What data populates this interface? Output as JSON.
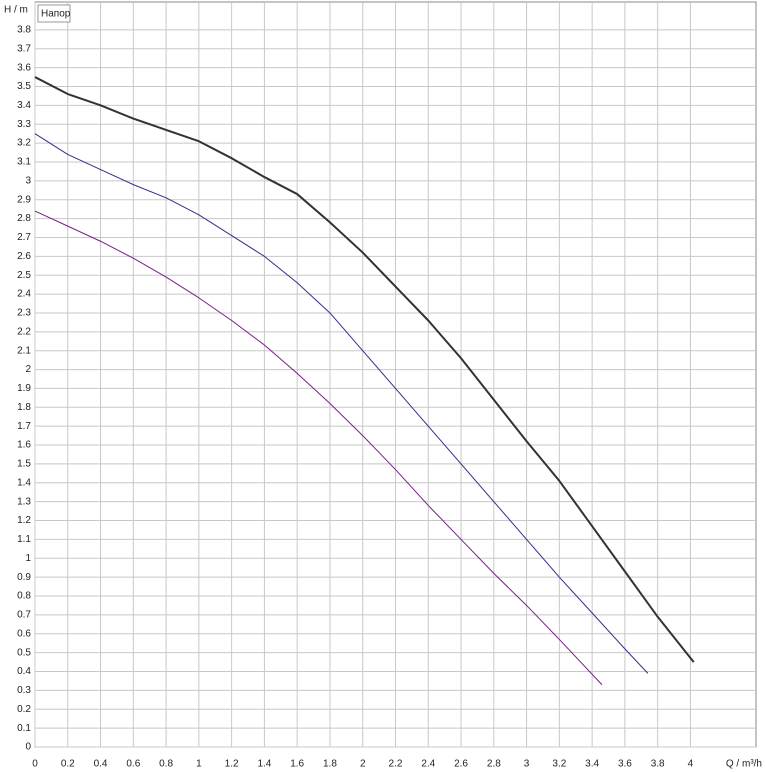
{
  "chart_data": {
    "type": "line",
    "legend_label": "Напор",
    "y_label": "H / m",
    "x_label": "Q / m³/h",
    "xlim": [
      0,
      4.4
    ],
    "ylim": [
      0,
      3.9
    ],
    "xticks": [
      0,
      0.2,
      0.4,
      0.6,
      0.8,
      1,
      1.2,
      1.4,
      1.6,
      1.8,
      2,
      2.2,
      2.4,
      2.6,
      2.8,
      3,
      3.2,
      3.4,
      3.6,
      3.8,
      4
    ],
    "yticks": [
      0,
      0.1,
      0.2,
      0.3,
      0.4,
      0.5,
      0.6,
      0.7,
      0.8,
      0.9,
      1,
      1.1,
      1.2,
      1.3,
      1.4,
      1.5,
      1.6,
      1.7,
      1.8,
      1.9,
      2,
      2.1,
      2.2,
      2.3,
      2.4,
      2.5,
      2.6,
      2.7,
      2.8,
      2.9,
      3,
      3.1,
      3.2,
      3.3,
      3.4,
      3.5,
      3.6,
      3.7,
      3.8
    ],
    "grid": true,
    "series": [
      {
        "color": "#333333",
        "width": 2,
        "x": [
          0,
          0.2,
          0.4,
          0.6,
          0.8,
          1,
          1.2,
          1.4,
          1.6,
          1.8,
          2,
          2.2,
          2.4,
          2.6,
          2.8,
          3,
          3.2,
          3.4,
          3.6,
          3.8,
          4.02
        ],
        "values": [
          3.55,
          3.46,
          3.4,
          3.33,
          3.27,
          3.21,
          3.12,
          3.02,
          2.93,
          2.78,
          2.62,
          2.44,
          2.26,
          2.06,
          1.84,
          1.62,
          1.41,
          1.17,
          0.93,
          0.69,
          0.45
        ]
      },
      {
        "color": "#3b2a8c",
        "width": 1,
        "x": [
          0,
          0.2,
          0.4,
          0.6,
          0.8,
          1,
          1.2,
          1.4,
          1.6,
          1.8,
          2,
          2.2,
          2.4,
          2.6,
          2.8,
          3,
          3.2,
          3.4,
          3.6,
          3.74
        ],
        "values": [
          3.25,
          3.14,
          3.06,
          2.98,
          2.91,
          2.82,
          2.71,
          2.6,
          2.46,
          2.3,
          2.1,
          1.9,
          1.7,
          1.5,
          1.3,
          1.1,
          0.9,
          0.71,
          0.52,
          0.39
        ]
      },
      {
        "color": "#7a1f8a",
        "width": 1,
        "x": [
          0,
          0.2,
          0.4,
          0.6,
          0.8,
          1,
          1.2,
          1.4,
          1.6,
          1.8,
          2,
          2.2,
          2.4,
          2.6,
          2.8,
          3,
          3.2,
          3.46
        ],
        "values": [
          2.84,
          2.76,
          2.68,
          2.59,
          2.49,
          2.38,
          2.26,
          2.13,
          1.98,
          1.82,
          1.65,
          1.47,
          1.28,
          1.1,
          0.92,
          0.75,
          0.57,
          0.33
        ]
      }
    ]
  }
}
